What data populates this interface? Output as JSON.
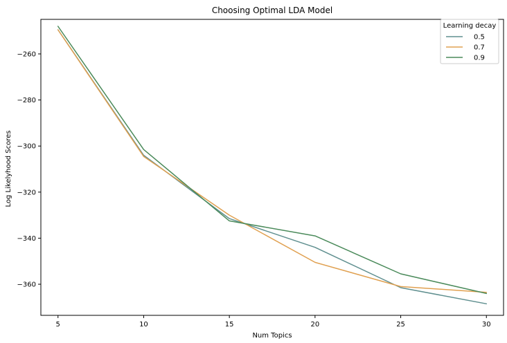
{
  "chart_data": {
    "type": "line",
    "title": "Choosing Optimal LDA Model",
    "xlabel": "Num Topics",
    "ylabel": "Log Likelyhood Scores",
    "x": [
      5,
      10,
      15,
      20,
      25,
      30
    ],
    "xticks": [
      "5",
      "10",
      "15",
      "20",
      "25",
      "30"
    ],
    "yticks": [
      "−260",
      "−280",
      "−300",
      "−320",
      "−340",
      "−360"
    ],
    "ytick_values": [
      -260,
      -280,
      -300,
      -320,
      -340,
      -360
    ],
    "xlim": [
      4,
      31
    ],
    "ylim": [
      -373.5,
      -245
    ],
    "grid": false,
    "legend": {
      "title": "Learning decay",
      "placement": "top-right"
    },
    "series": [
      {
        "name": "0.5",
        "color": "#5f8f8f",
        "values": [
          -249.5,
          -304.0,
          -331.5,
          -344.0,
          -361.5,
          -368.5
        ]
      },
      {
        "name": "0.7",
        "color": "#e0a050",
        "values": [
          -249.5,
          -304.5,
          -330.0,
          -350.5,
          -361.0,
          -363.5
        ]
      },
      {
        "name": "0.9",
        "color": "#4a8a5a",
        "values": [
          -248.0,
          -301.5,
          -332.5,
          -339.0,
          -355.5,
          -364.0
        ]
      }
    ]
  }
}
